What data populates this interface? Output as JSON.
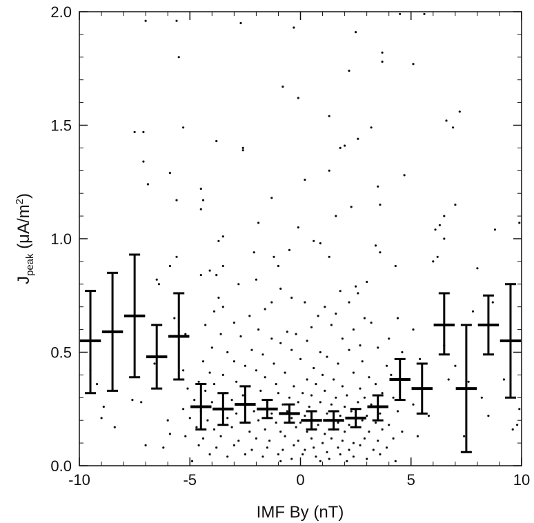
{
  "chart_data": {
    "type": "scatter",
    "xlabel": "IMF By (nT)",
    "ylabel": {
      "main": "J",
      "sub": "peak",
      "unit_open": " (μA/m",
      "sup": "2",
      "unit_close": ")"
    },
    "xlim": [
      -10,
      10
    ],
    "ylim": [
      0,
      2.0
    ],
    "x_ticks": [
      -10,
      -5,
      0,
      5,
      10
    ],
    "x_tick_labels": [
      "-10",
      "-5",
      "0",
      "5",
      "10"
    ],
    "y_ticks": [
      0,
      0.5,
      1.0,
      1.5,
      2.0
    ],
    "y_tick_labels": [
      "0.0",
      "0.5",
      "1.0",
      "1.5",
      "2.0"
    ],
    "grid": false,
    "binned_means": [
      {
        "x": -9.5,
        "mean": 0.55,
        "low": 0.32,
        "high": 0.77
      },
      {
        "x": -8.5,
        "mean": 0.59,
        "low": 0.33,
        "high": 0.85
      },
      {
        "x": -7.5,
        "mean": 0.66,
        "low": 0.39,
        "high": 0.93
      },
      {
        "x": -6.5,
        "mean": 0.48,
        "low": 0.34,
        "high": 0.62
      },
      {
        "x": -5.5,
        "mean": 0.57,
        "low": 0.38,
        "high": 0.76
      },
      {
        "x": -4.5,
        "mean": 0.26,
        "low": 0.16,
        "high": 0.36
      },
      {
        "x": -3.5,
        "mean": 0.25,
        "low": 0.18,
        "high": 0.32
      },
      {
        "x": -2.5,
        "mean": 0.27,
        "low": 0.19,
        "high": 0.35
      },
      {
        "x": -1.5,
        "mean": 0.25,
        "low": 0.21,
        "high": 0.29
      },
      {
        "x": -0.5,
        "mean": 0.23,
        "low": 0.19,
        "high": 0.27
      },
      {
        "x": 0.5,
        "mean": 0.2,
        "low": 0.16,
        "high": 0.24
      },
      {
        "x": 1.5,
        "mean": 0.2,
        "low": 0.16,
        "high": 0.24
      },
      {
        "x": 2.5,
        "mean": 0.21,
        "low": 0.17,
        "high": 0.25
      },
      {
        "x": 3.5,
        "mean": 0.26,
        "low": 0.2,
        "high": 0.31
      },
      {
        "x": 4.5,
        "mean": 0.38,
        "low": 0.29,
        "high": 0.47
      },
      {
        "x": 5.5,
        "mean": 0.34,
        "low": 0.23,
        "high": 0.45
      },
      {
        "x": 6.5,
        "mean": 0.62,
        "low": 0.49,
        "high": 0.76
      },
      {
        "x": 7.5,
        "mean": 0.34,
        "low": 0.06,
        "high": 0.62
      },
      {
        "x": 8.5,
        "mean": 0.62,
        "low": 0.49,
        "high": 0.75
      },
      {
        "x": 9.5,
        "mean": 0.55,
        "low": 0.3,
        "high": 0.8
      }
    ],
    "points": [
      [
        -7.0,
        1.96
      ],
      [
        -5.6,
        1.96
      ],
      [
        -2.7,
        1.95
      ],
      [
        -0.3,
        1.93
      ],
      [
        2.5,
        1.91
      ],
      [
        4.5,
        1.99
      ],
      [
        5.6,
        1.99
      ],
      [
        -5.5,
        1.8
      ],
      [
        3.7,
        1.82
      ],
      [
        3.7,
        1.78
      ],
      [
        5.1,
        1.77
      ],
      [
        2.2,
        1.74
      ],
      [
        -0.8,
        1.67
      ],
      [
        -0.1,
        1.62
      ],
      [
        6.6,
        1.52
      ],
      [
        7.2,
        1.56
      ],
      [
        6.9,
        1.49
      ],
      [
        1.3,
        1.54
      ],
      [
        -7.5,
        1.47
      ],
      [
        -7.1,
        1.47
      ],
      [
        -5.3,
        1.49
      ],
      [
        3.2,
        1.49
      ],
      [
        2.6,
        1.44
      ],
      [
        -3.8,
        1.43
      ],
      [
        -2.6,
        1.4
      ],
      [
        -2.6,
        1.39
      ],
      [
        1.8,
        1.4
      ],
      [
        2.0,
        1.41
      ],
      [
        -7.1,
        1.34
      ],
      [
        -5.9,
        1.29
      ],
      [
        1.3,
        1.3
      ],
      [
        4.7,
        1.28
      ],
      [
        0.2,
        1.26
      ],
      [
        -6.9,
        1.24
      ],
      [
        3.5,
        1.23
      ],
      [
        -4.5,
        1.22
      ],
      [
        -4.5,
        1.13
      ],
      [
        -4.4,
        1.17
      ],
      [
        -5.6,
        1.17
      ],
      [
        -1.3,
        1.18
      ],
      [
        2.3,
        1.14
      ],
      [
        3.6,
        1.15
      ],
      [
        7.0,
        1.15
      ],
      [
        1.6,
        1.1
      ],
      [
        6.5,
        1.1
      ],
      [
        6.3,
        1.06
      ],
      [
        9.9,
        1.07
      ],
      [
        -1.9,
        1.07
      ],
      [
        -0.1,
        1.05
      ],
      [
        8.8,
        1.04
      ],
      [
        6.1,
        1.04
      ],
      [
        -3.5,
        1.01
      ],
      [
        -3.7,
        0.99
      ],
      [
        3.4,
        0.97
      ],
      [
        3.6,
        0.94
      ],
      [
        6.5,
        1.0
      ],
      [
        0.9,
        0.98
      ],
      [
        0.6,
        0.99
      ],
      [
        1.3,
        0.92
      ],
      [
        -2.1,
        0.94
      ],
      [
        -1.2,
        0.92
      ],
      [
        -0.5,
        0.95
      ],
      [
        6.2,
        0.92
      ],
      [
        6.0,
        0.9
      ],
      [
        -4.1,
        0.86
      ],
      [
        -3.8,
        0.84
      ],
      [
        -1.0,
        0.88
      ],
      [
        4.3,
        0.88
      ],
      [
        8.0,
        0.87
      ],
      [
        -4.5,
        0.84
      ],
      [
        -3.5,
        0.88
      ],
      [
        -6.5,
        0.82
      ],
      [
        -6.4,
        0.8
      ],
      [
        -2.8,
        0.8
      ],
      [
        -2.0,
        0.82
      ],
      [
        2.5,
        0.79
      ],
      [
        3.0,
        0.81
      ],
      [
        -0.9,
        0.78
      ],
      [
        1.8,
        0.77
      ],
      [
        -3.7,
        0.74
      ],
      [
        -3.5,
        0.7
      ],
      [
        -1.3,
        0.72
      ],
      [
        -0.4,
        0.74
      ],
      [
        0.2,
        0.72
      ],
      [
        1.1,
        0.7
      ],
      [
        2.2,
        0.72
      ],
      [
        2.6,
        0.76
      ],
      [
        -3.9,
        0.68
      ],
      [
        -2.3,
        0.66
      ],
      [
        -1.6,
        0.69
      ],
      [
        0.8,
        0.66
      ],
      [
        1.6,
        0.67
      ],
      [
        2.9,
        0.65
      ],
      [
        4.4,
        0.65
      ],
      [
        -4.3,
        0.62
      ],
      [
        -3.0,
        0.63
      ],
      [
        -1.9,
        0.6
      ],
      [
        -0.6,
        0.59
      ],
      [
        -0.2,
        0.58
      ],
      [
        0.5,
        0.61
      ],
      [
        1.4,
        0.62
      ],
      [
        2.4,
        0.6
      ],
      [
        3.2,
        0.63
      ],
      [
        5.1,
        0.6
      ],
      [
        -3.6,
        0.58
      ],
      [
        -2.7,
        0.57
      ],
      [
        -1.3,
        0.56
      ],
      [
        -0.9,
        0.54
      ],
      [
        0.3,
        0.55
      ],
      [
        1.9,
        0.56
      ],
      [
        2.7,
        0.53
      ],
      [
        4.0,
        0.56
      ],
      [
        -4.0,
        0.52
      ],
      [
        -3.3,
        0.5
      ],
      [
        -2.2,
        0.51
      ],
      [
        -1.7,
        0.49
      ],
      [
        -0.4,
        0.51
      ],
      [
        0.9,
        0.5
      ],
      [
        1.2,
        0.48
      ],
      [
        2.2,
        0.51
      ],
      [
        3.5,
        0.52
      ],
      [
        4.6,
        0.5
      ],
      [
        -4.4,
        0.46
      ],
      [
        -3.0,
        0.46
      ],
      [
        -2.5,
        0.44
      ],
      [
        -1.2,
        0.45
      ],
      [
        0.0,
        0.47
      ],
      [
        0.6,
        0.43
      ],
      [
        1.7,
        0.45
      ],
      [
        2.8,
        0.46
      ],
      [
        3.9,
        0.44
      ],
      [
        5.4,
        0.47
      ],
      [
        -5.3,
        0.42
      ],
      [
        -4.1,
        0.41
      ],
      [
        -3.5,
        0.4
      ],
      [
        -2.0,
        0.42
      ],
      [
        -1.6,
        0.39
      ],
      [
        -0.7,
        0.41
      ],
      [
        0.3,
        0.38
      ],
      [
        1.0,
        0.4
      ],
      [
        1.5,
        0.38
      ],
      [
        2.4,
        0.41
      ],
      [
        3.1,
        0.39
      ],
      [
        4.1,
        0.4
      ],
      [
        -4.6,
        0.37
      ],
      [
        -3.9,
        0.36
      ],
      [
        -2.9,
        0.37
      ],
      [
        -2.3,
        0.35
      ],
      [
        -1.1,
        0.36
      ],
      [
        -0.3,
        0.35
      ],
      [
        0.7,
        0.36
      ],
      [
        1.9,
        0.35
      ],
      [
        2.7,
        0.34
      ],
      [
        3.4,
        0.36
      ],
      [
        -5.1,
        0.34
      ],
      [
        -4.3,
        0.33
      ],
      [
        -3.4,
        0.32
      ],
      [
        -2.6,
        0.31
      ],
      [
        -1.8,
        0.33
      ],
      [
        -1.0,
        0.32
      ],
      [
        -0.5,
        0.3
      ],
      [
        0.1,
        0.32
      ],
      [
        0.5,
        0.31
      ],
      [
        1.1,
        0.33
      ],
      [
        1.6,
        0.3
      ],
      [
        2.1,
        0.31
      ],
      [
        2.9,
        0.3
      ],
      [
        3.7,
        0.32
      ],
      [
        4.2,
        0.3
      ],
      [
        -4.8,
        0.29
      ],
      [
        -4.0,
        0.28
      ],
      [
        -3.1,
        0.29
      ],
      [
        -2.4,
        0.27
      ],
      [
        -1.5,
        0.28
      ],
      [
        -0.8,
        0.27
      ],
      [
        -0.1,
        0.28
      ],
      [
        0.4,
        0.26
      ],
      [
        0.9,
        0.28
      ],
      [
        1.4,
        0.27
      ],
      [
        2.0,
        0.26
      ],
      [
        2.6,
        0.28
      ],
      [
        3.2,
        0.27
      ],
      [
        3.9,
        0.26
      ],
      [
        -5.3,
        0.25
      ],
      [
        -4.5,
        0.24
      ],
      [
        -3.7,
        0.25
      ],
      [
        -2.9,
        0.23
      ],
      [
        -2.1,
        0.24
      ],
      [
        -1.3,
        0.23
      ],
      [
        -0.6,
        0.24
      ],
      [
        0.2,
        0.22
      ],
      [
        0.6,
        0.24
      ],
      [
        1.2,
        0.23
      ],
      [
        1.8,
        0.22
      ],
      [
        2.3,
        0.24
      ],
      [
        3.0,
        0.22
      ],
      [
        3.6,
        0.23
      ],
      [
        4.4,
        0.24
      ],
      [
        -5.0,
        0.21
      ],
      [
        -4.2,
        0.2
      ],
      [
        -3.3,
        0.21
      ],
      [
        -2.6,
        0.19
      ],
      [
        -1.9,
        0.2
      ],
      [
        -1.1,
        0.19
      ],
      [
        -0.4,
        0.21
      ],
      [
        0.0,
        0.19
      ],
      [
        0.4,
        0.2
      ],
      [
        0.8,
        0.18
      ],
      [
        1.3,
        0.2
      ],
      [
        1.7,
        0.19
      ],
      [
        2.2,
        0.18
      ],
      [
        2.8,
        0.2
      ],
      [
        3.4,
        0.19
      ],
      [
        4.0,
        0.18
      ],
      [
        -4.7,
        0.17
      ],
      [
        -3.9,
        0.16
      ],
      [
        -3.1,
        0.17
      ],
      [
        -2.3,
        0.15
      ],
      [
        -1.6,
        0.16
      ],
      [
        -0.9,
        0.15
      ],
      [
        -0.2,
        0.17
      ],
      [
        0.3,
        0.15
      ],
      [
        0.7,
        0.16
      ],
      [
        1.1,
        0.14
      ],
      [
        1.5,
        0.16
      ],
      [
        2.0,
        0.15
      ],
      [
        2.5,
        0.17
      ],
      [
        3.1,
        0.15
      ],
      [
        3.7,
        0.16
      ],
      [
        4.6,
        0.15
      ],
      [
        -5.2,
        0.13
      ],
      [
        -4.4,
        0.12
      ],
      [
        -3.6,
        0.13
      ],
      [
        -2.8,
        0.11
      ],
      [
        -2.0,
        0.12
      ],
      [
        -1.4,
        0.11
      ],
      [
        -0.7,
        0.13
      ],
      [
        -0.1,
        0.11
      ],
      [
        0.5,
        0.12
      ],
      [
        1.0,
        0.1
      ],
      [
        1.4,
        0.12
      ],
      [
        1.9,
        0.11
      ],
      [
        2.4,
        0.1
      ],
      [
        2.9,
        0.12
      ],
      [
        3.5,
        0.11
      ],
      [
        4.2,
        0.12
      ],
      [
        -4.6,
        0.09
      ],
      [
        -3.8,
        0.08
      ],
      [
        -3.0,
        0.09
      ],
      [
        -2.2,
        0.07
      ],
      [
        -1.5,
        0.08
      ],
      [
        -0.8,
        0.07
      ],
      [
        -0.3,
        0.09
      ],
      [
        0.2,
        0.07
      ],
      [
        0.6,
        0.08
      ],
      [
        1.2,
        0.06
      ],
      [
        1.7,
        0.08
      ],
      [
        2.2,
        0.07
      ],
      [
        2.7,
        0.09
      ],
      [
        3.3,
        0.07
      ],
      [
        3.9,
        0.08
      ],
      [
        -4.1,
        0.05
      ],
      [
        -3.3,
        0.04
      ],
      [
        -2.5,
        0.05
      ],
      [
        -1.7,
        0.04
      ],
      [
        -1.0,
        0.05
      ],
      [
        -0.4,
        0.03
      ],
      [
        0.1,
        0.05
      ],
      [
        0.7,
        0.04
      ],
      [
        1.3,
        0.03
      ],
      [
        1.8,
        0.05
      ],
      [
        2.4,
        0.04
      ],
      [
        3.0,
        0.03
      ],
      [
        3.6,
        0.05
      ],
      [
        -4.9,
        0.02
      ],
      [
        -0.9,
        0.02
      ],
      [
        0.9,
        0.02
      ],
      [
        2.1,
        0.02
      ],
      [
        4.3,
        0.02
      ],
      [
        -9.5,
        0.42
      ],
      [
        -9.2,
        0.36
      ],
      [
        -8.9,
        0.26
      ],
      [
        -9.0,
        0.21
      ],
      [
        -8.4,
        0.17
      ],
      [
        -7.6,
        0.29
      ],
      [
        -7.2,
        0.28
      ],
      [
        -7.0,
        0.09
      ],
      [
        -6.2,
        0.08
      ],
      [
        -6.0,
        0.2
      ],
      [
        -5.9,
        0.14
      ],
      [
        -6.6,
        0.45
      ],
      [
        -5.7,
        0.65
      ],
      [
        -5.2,
        0.58
      ],
      [
        -5.6,
        0.92
      ],
      [
        -5.9,
        0.88
      ],
      [
        5.1,
        0.27
      ],
      [
        5.8,
        0.22
      ],
      [
        5.3,
        0.13
      ],
      [
        6.7,
        0.38
      ],
      [
        6.5,
        0.53
      ],
      [
        7.0,
        0.44
      ],
      [
        7.4,
        0.13
      ],
      [
        7.6,
        0.37
      ],
      [
        8.2,
        0.3
      ],
      [
        8.5,
        0.22
      ],
      [
        9.2,
        0.38
      ],
      [
        9.9,
        0.25
      ],
      [
        9.8,
        0.18
      ],
      [
        9.6,
        0.16
      ],
      [
        7.8,
        0.68
      ],
      [
        8.7,
        0.72
      ]
    ]
  }
}
